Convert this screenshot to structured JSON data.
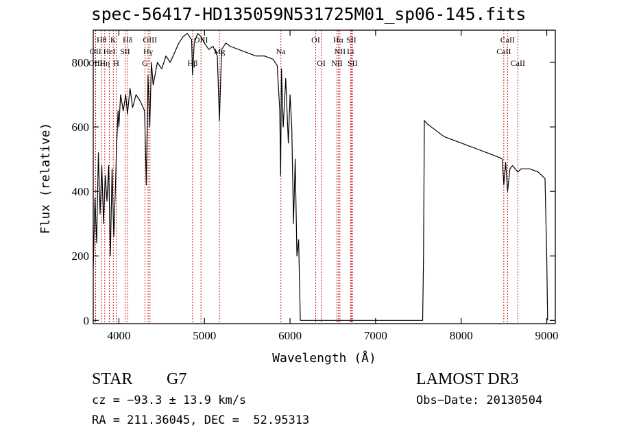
{
  "chart_data": {
    "type": "line",
    "title": "spec-56417-HD135059N531725M01_sp06-145.fits",
    "xlabel": "Wavelength (Å)",
    "ylabel": "Flux (relative)",
    "xlim": [
      3700,
      9100
    ],
    "ylim": [
      -10,
      900
    ],
    "x_ticks": [
      4000,
      5000,
      6000,
      7000,
      8000,
      9000
    ],
    "y_ticks": [
      0,
      200,
      400,
      600,
      800
    ],
    "grid": false,
    "series": [
      {
        "x": [
          3700,
          3720,
          3740,
          3760,
          3780,
          3800,
          3820,
          3840,
          3860,
          3880,
          3900,
          3920,
          3940,
          3960,
          3970,
          3990,
          4000,
          4020,
          4050,
          4080,
          4100,
          4130,
          4160,
          4200,
          4250,
          4300,
          4320,
          4340,
          4360,
          4380,
          4400,
          4450,
          4500,
          4550,
          4600,
          4650,
          4700,
          4750,
          4800,
          4850,
          4861,
          4880,
          4920,
          4960,
          5000,
          5050,
          5100,
          5150,
          5175,
          5200,
          5250,
          5300,
          5400,
          5500,
          5600,
          5700,
          5800,
          5850,
          5880,
          5890,
          5900,
          5920,
          5950,
          5980,
          6000,
          6020,
          6040,
          6060,
          6080,
          6100,
          6120,
          6140,
          6200,
          6400,
          6600,
          6800,
          7000,
          7200,
          7400,
          7550,
          7560,
          7570,
          7600,
          7700,
          7800,
          7900,
          8000,
          8100,
          8200,
          8300,
          8400,
          8450,
          8480,
          8498,
          8520,
          8542,
          8570,
          8600,
          8662,
          8700,
          8800,
          8900,
          8980,
          9000,
          9010
        ],
        "y": [
          160,
          380,
          240,
          520,
          330,
          480,
          300,
          450,
          370,
          480,
          200,
          470,
          260,
          420,
          520,
          650,
          600,
          700,
          650,
          700,
          640,
          720,
          660,
          700,
          680,
          650,
          420,
          760,
          600,
          800,
          730,
          800,
          780,
          820,
          800,
          830,
          860,
          880,
          890,
          870,
          760,
          860,
          890,
          880,
          860,
          840,
          850,
          820,
          620,
          840,
          860,
          850,
          840,
          830,
          820,
          820,
          810,
          790,
          650,
          450,
          780,
          600,
          750,
          550,
          700,
          600,
          300,
          500,
          200,
          250,
          0,
          0,
          0,
          0,
          0,
          0,
          0,
          0,
          0,
          0,
          200,
          620,
          610,
          590,
          570,
          560,
          550,
          540,
          530,
          520,
          510,
          505,
          500,
          420,
          490,
          400,
          470,
          480,
          460,
          470,
          470,
          460,
          440,
          200,
          0
        ]
      }
    ],
    "annotations": {
      "lines": [
        {
          "label": "Hθ",
          "x": 3798,
          "row": 1
        },
        {
          "label": "OII",
          "x": 3727,
          "row": 2
        },
        {
          "label": "OIII",
          "x": 3727,
          "row": 3
        },
        {
          "label": "K",
          "x": 3934,
          "row": 1
        },
        {
          "label": "HeI",
          "x": 3889,
          "row": 2
        },
        {
          "label": "Hη",
          "x": 3835,
          "row": 3
        },
        {
          "label": "Hδ",
          "x": 4102,
          "row": 1
        },
        {
          "label": "SII",
          "x": 4072,
          "row": 2
        },
        {
          "label": "H",
          "x": 3969,
          "row": 3
        },
        {
          "label": "OIII",
          "x": 4363,
          "row": 1
        },
        {
          "label": "Hγ",
          "x": 4341,
          "row": 2
        },
        {
          "label": "G",
          "x": 4305,
          "row": 3
        },
        {
          "label": "OIII",
          "x": 4959,
          "row": 1
        },
        {
          "label": "Mg",
          "x": 5175,
          "row": 2
        },
        {
          "label": "Hβ",
          "x": 4861,
          "row": 3
        },
        {
          "label": "Na",
          "x": 5893,
          "row": 2
        },
        {
          "label": "OI",
          "x": 6300,
          "row": 1
        },
        {
          "label": "OI",
          "x": 6364,
          "row": 3
        },
        {
          "label": "Hα",
          "x": 6563,
          "row": 1
        },
        {
          "label": "NII",
          "x": 6583,
          "row": 2
        },
        {
          "label": "NII",
          "x": 6548,
          "row": 3
        },
        {
          "label": "SII",
          "x": 6716,
          "row": 1
        },
        {
          "label": "Li",
          "x": 6707,
          "row": 2
        },
        {
          "label": "SII",
          "x": 6731,
          "row": 3
        },
        {
          "label": "CaII",
          "x": 8542,
          "row": 1
        },
        {
          "label": "CaII",
          "x": 8498,
          "row": 2
        },
        {
          "label": "CaII",
          "x": 8662,
          "row": 3
        }
      ],
      "color": "#cc0000"
    }
  },
  "footer": {
    "class_label": "STAR",
    "subclass": "G7",
    "survey": "LAMOST DR3",
    "cz": "cz = −93.3 ± 13.9 km/s",
    "obs_date": "Obs−Date: 20130504",
    "radec": "RA = 211.36045, DEC =  52.95313"
  }
}
